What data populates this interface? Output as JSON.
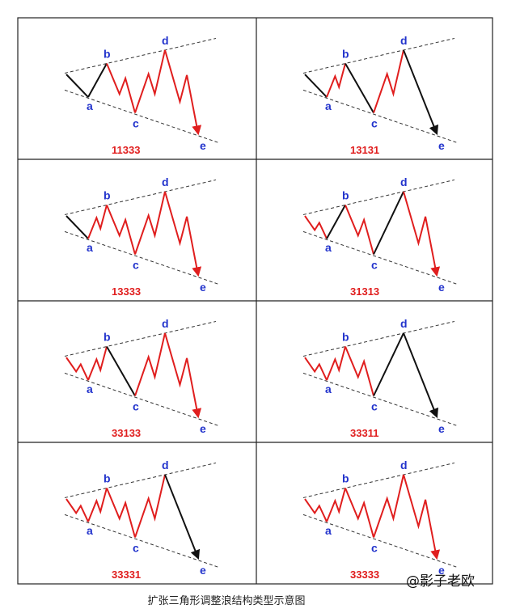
{
  "caption": "扩张三角形调整浪结构类型示意图",
  "watermark": "@影子老欧",
  "colors": {
    "impulse": "#e01e1e",
    "corrective": "#111111",
    "labels": "#2233cc",
    "code": "#e01e1e"
  },
  "point_labels": [
    "a",
    "b",
    "c",
    "d",
    "e"
  ],
  "panels": [
    {
      "code": "11333",
      "legs": [
        "1",
        "1",
        "3",
        "3",
        "3"
      ]
    },
    {
      "code": "13131",
      "legs": [
        "1",
        "3",
        "1",
        "3",
        "1"
      ]
    },
    {
      "code": "13333",
      "legs": [
        "1",
        "3",
        "3",
        "3",
        "3"
      ]
    },
    {
      "code": "31313",
      "legs": [
        "3",
        "1",
        "3",
        "1",
        "3"
      ]
    },
    {
      "code": "33133",
      "legs": [
        "3",
        "3",
        "1",
        "3",
        "3"
      ]
    },
    {
      "code": "33311",
      "legs": [
        "3",
        "3",
        "3",
        "1",
        "1"
      ]
    },
    {
      "code": "33331",
      "legs": [
        "3",
        "3",
        "3",
        "3",
        "1"
      ]
    },
    {
      "code": "33333",
      "legs": [
        "3",
        "3",
        "3",
        "3",
        "3"
      ]
    }
  ]
}
